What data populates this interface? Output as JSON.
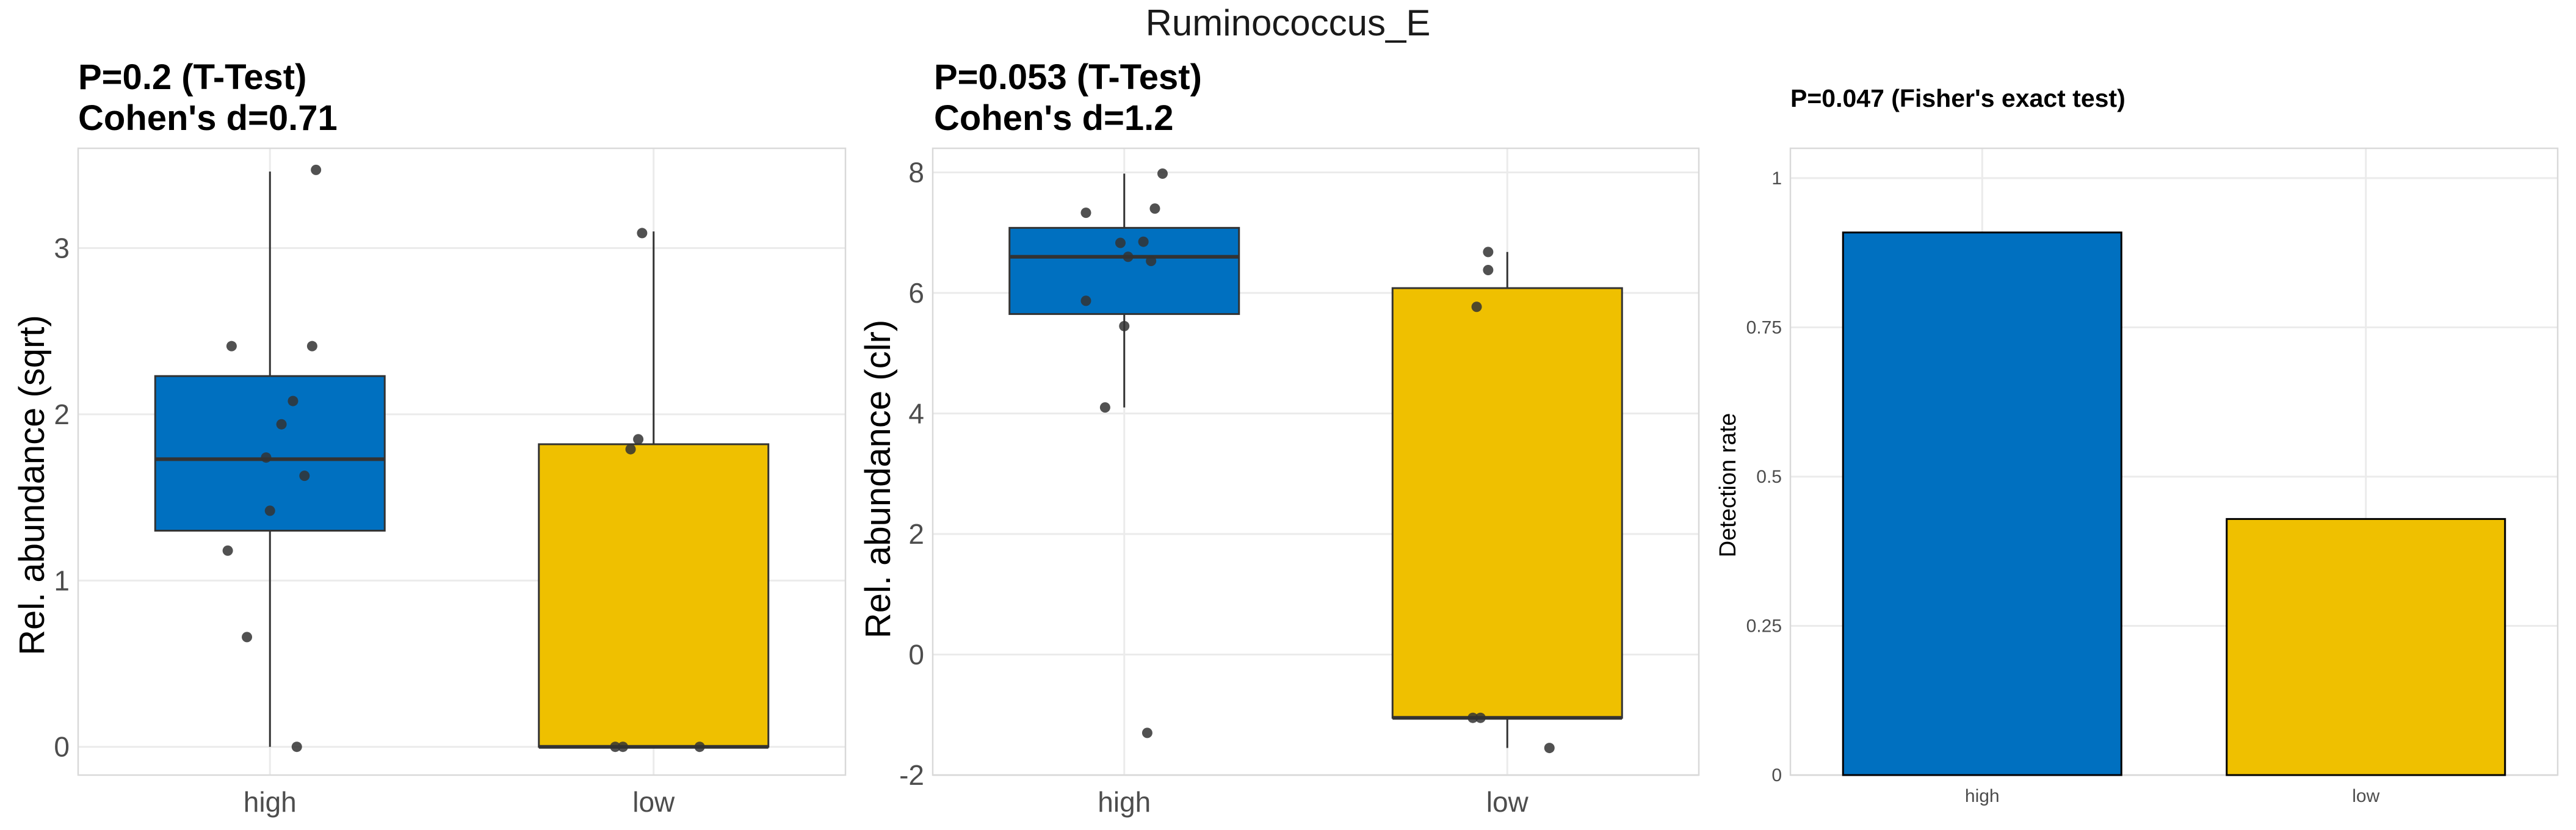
{
  "figure": {
    "title": "Ruminococcus_E"
  },
  "colors": {
    "high": "#0070C0",
    "low": "#EFC000",
    "point": "#333333"
  },
  "chart_data": [
    {
      "type": "box",
      "title_lines": [
        "P=0.2 (T-Test)",
        "Cohen's d=0.71"
      ],
      "xlabel": "",
      "ylabel": "Rel. abundance (sqrt)",
      "categories": [
        "high",
        "low"
      ],
      "ylim": [
        -0.17,
        3.6
      ],
      "yticks": [
        0,
        1,
        2,
        3
      ],
      "ytick_labels": [
        "0",
        "1",
        "2",
        "3"
      ],
      "boxes": [
        {
          "group": "high",
          "q1": 1.3,
          "median": 1.73,
          "q3": 2.23,
          "whisker_low": 0,
          "whisker_high": 3.46
        },
        {
          "group": "low",
          "q1": 0,
          "median": 0,
          "q3": 1.82,
          "whisker_low": 0,
          "whisker_high": 3.1
        }
      ],
      "points": [
        {
          "group": "high",
          "jitter": 0.12,
          "y": 3.47
        },
        {
          "group": "high",
          "jitter": -0.1,
          "y": 2.41
        },
        {
          "group": "high",
          "jitter": 0.11,
          "y": 2.41
        },
        {
          "group": "high",
          "jitter": 0.06,
          "y": 2.08
        },
        {
          "group": "high",
          "jitter": 0.03,
          "y": 1.94
        },
        {
          "group": "high",
          "jitter": -0.01,
          "y": 1.74
        },
        {
          "group": "high",
          "jitter": 0.09,
          "y": 1.63
        },
        {
          "group": "high",
          "jitter": 0.0,
          "y": 1.42
        },
        {
          "group": "high",
          "jitter": -0.11,
          "y": 1.18
        },
        {
          "group": "high",
          "jitter": -0.06,
          "y": 0.66
        },
        {
          "group": "high",
          "jitter": 0.07,
          "y": 0.0
        },
        {
          "group": "low",
          "jitter": -0.03,
          "y": 3.09
        },
        {
          "group": "low",
          "jitter": -0.04,
          "y": 1.85
        },
        {
          "group": "low",
          "jitter": -0.06,
          "y": 1.79
        },
        {
          "group": "low",
          "jitter": -0.1,
          "y": 0.0
        },
        {
          "group": "low",
          "jitter": -0.08,
          "y": 0.0
        },
        {
          "group": "low",
          "jitter": 0.12,
          "y": 0.0
        }
      ]
    },
    {
      "type": "box",
      "title_lines": [
        "P=0.053 (T-Test)",
        "Cohen's d=1.2"
      ],
      "xlabel": "",
      "ylabel": "Rel. abundance (clr)",
      "categories": [
        "high",
        "low"
      ],
      "ylim": [
        -2.0,
        8.4
      ],
      "yticks": [
        -2,
        0,
        2,
        4,
        6,
        8
      ],
      "ytick_labels": [
        "-2",
        "0",
        "2",
        "4",
        "6",
        "8"
      ],
      "boxes": [
        {
          "group": "high",
          "q1": 5.65,
          "median": 6.6,
          "q3": 7.08,
          "whisker_low": 4.1,
          "whisker_high": 7.98
        },
        {
          "group": "low",
          "q1": -1.05,
          "median": -1.05,
          "q3": 6.08,
          "whisker_low": -1.55,
          "whisker_high": 6.68
        }
      ],
      "points": [
        {
          "group": "high",
          "jitter": 0.1,
          "y": 7.98
        },
        {
          "group": "high",
          "jitter": 0.08,
          "y": 7.4
        },
        {
          "group": "high",
          "jitter": -0.1,
          "y": 7.33
        },
        {
          "group": "high",
          "jitter": 0.05,
          "y": 6.85
        },
        {
          "group": "high",
          "jitter": -0.01,
          "y": 6.83
        },
        {
          "group": "high",
          "jitter": 0.01,
          "y": 6.6
        },
        {
          "group": "high",
          "jitter": 0.07,
          "y": 6.53
        },
        {
          "group": "high",
          "jitter": -0.1,
          "y": 5.87
        },
        {
          "group": "high",
          "jitter": 0.0,
          "y": 5.45
        },
        {
          "group": "high",
          "jitter": -0.05,
          "y": 4.1
        },
        {
          "group": "high",
          "jitter": 0.06,
          "y": -1.3
        },
        {
          "group": "low",
          "jitter": -0.05,
          "y": 6.68
        },
        {
          "group": "low",
          "jitter": -0.05,
          "y": 6.38
        },
        {
          "group": "low",
          "jitter": -0.08,
          "y": 5.77
        },
        {
          "group": "low",
          "jitter": -0.09,
          "y": -1.05
        },
        {
          "group": "low",
          "jitter": -0.07,
          "y": -1.05
        },
        {
          "group": "low",
          "jitter": 0.11,
          "y": -1.55
        }
      ]
    },
    {
      "type": "bar",
      "title_lines": [
        "P=0.047 (Fisher's exact test)"
      ],
      "xlabel": "",
      "ylabel": "Detection rate",
      "categories": [
        "high",
        "low"
      ],
      "values": [
        0.909,
        0.429
      ],
      "ylim": [
        0,
        1.05
      ],
      "yticks": [
        0,
        0.25,
        0.5,
        0.75,
        1
      ],
      "ytick_labels": [
        "0",
        "0.25",
        "0.5",
        "0.75",
        "1"
      ]
    }
  ]
}
